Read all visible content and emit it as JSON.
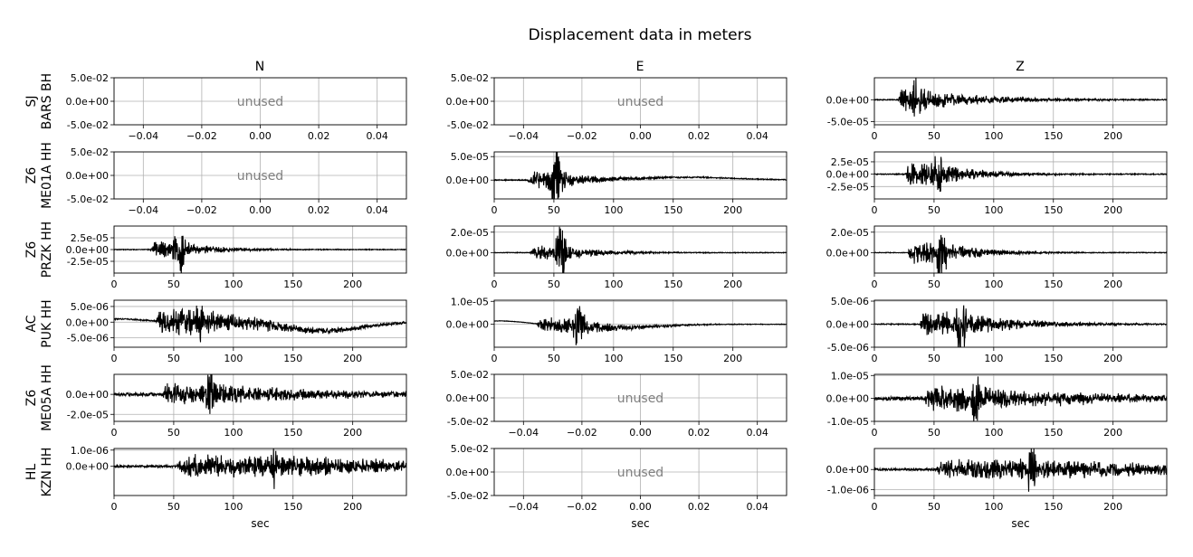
{
  "title": "Displacement data in meters",
  "columns": [
    "N",
    "E",
    "Z"
  ],
  "rows": [
    {
      "net": "SJ",
      "station": "BARS BH"
    },
    {
      "net": "Z6",
      "station": "ME01A HH"
    },
    {
      "net": "Z6",
      "station": "PRZK HH"
    },
    {
      "net": "AC",
      "station": "PUK HH"
    },
    {
      "net": "Z6",
      "station": "ME05A HH"
    },
    {
      "net": "HL",
      "station": "KZN HH"
    }
  ],
  "xlabel": "sec",
  "unused_label": "unused",
  "colors": {
    "trace": "#000000",
    "grid": "#b0b0b0",
    "unused_text": "#808080"
  },
  "chart_data": [
    {
      "type": "line",
      "row": 0,
      "col": 0,
      "unused": true,
      "xlim": [
        -0.05,
        0.05
      ],
      "ylim": [
        -0.05,
        0.05
      ],
      "xticks": [
        "-0.04",
        "-0.02",
        "0.00",
        "0.02",
        "0.04"
      ],
      "yticks": [
        "5.0e-02",
        "0.0e+00",
        "-5.0e-02"
      ]
    },
    {
      "type": "line",
      "row": 0,
      "col": 1,
      "unused": true,
      "xlim": [
        -0.05,
        0.05
      ],
      "ylim": [
        -0.05,
        0.05
      ],
      "xticks": [
        "-0.04",
        "-0.02",
        "0.00",
        "0.02",
        "0.04"
      ],
      "yticks": [
        "5.0e-02",
        "0.0e+00",
        "-5.0e-02"
      ]
    },
    {
      "type": "line",
      "row": 0,
      "col": 2,
      "unused": false,
      "xlim": [
        0,
        245
      ],
      "ylim": [
        -5.7e-05,
        5e-05
      ],
      "xticks": [
        "0",
        "50",
        "100",
        "150",
        "200"
      ],
      "yticks": [
        "0.0e+00",
        "-5.0e-05"
      ],
      "series": [
        {
          "onset": 20,
          "peak": 36,
          "amp": 5e-05,
          "amp_pre": 2e-05,
          "decay": 22,
          "noise": 1e-06,
          "drift": 0
        }
      ]
    },
    {
      "type": "line",
      "row": 1,
      "col": 0,
      "unused": true,
      "xlim": [
        -0.05,
        0.05
      ],
      "ylim": [
        -0.05,
        0.05
      ],
      "xticks": [
        "-0.04",
        "-0.02",
        "0.00",
        "0.02",
        "0.04"
      ],
      "yticks": [
        "5.0e-02",
        "0.0e+00",
        "-5.0e-02"
      ]
    },
    {
      "type": "line",
      "row": 1,
      "col": 1,
      "unused": false,
      "xlim": [
        0,
        245
      ],
      "ylim": [
        -4e-05,
        6e-05
      ],
      "xticks": [
        "0",
        "50",
        "100",
        "150",
        "200"
      ],
      "yticks": [
        "5.0e-05",
        "0.0e+00"
      ],
      "series": [
        {
          "onset": 28,
          "peak": 52,
          "amp": 5.5e-05,
          "amp_pre": 1.3e-05,
          "decay": 16,
          "noise": 1e-06,
          "drift": 6e-06,
          "drift_center": 160,
          "drift_width": 60
        }
      ]
    },
    {
      "type": "line",
      "row": 1,
      "col": 2,
      "unused": false,
      "xlim": [
        0,
        245
      ],
      "ylim": [
        -5e-05,
        4.5e-05
      ],
      "xticks": [
        "0",
        "50",
        "100",
        "150",
        "200"
      ],
      "yticks": [
        "2.5e-05",
        "0.0e+00",
        "-2.5e-05"
      ],
      "series": [
        {
          "onset": 26,
          "peak": 53,
          "amp": 4.3e-05,
          "amp_pre": 1.8e-05,
          "decay": 14,
          "noise": 1e-06,
          "drift": 0
        }
      ]
    },
    {
      "type": "line",
      "row": 2,
      "col": 0,
      "unused": false,
      "xlim": [
        0,
        245
      ],
      "ylim": [
        -5e-05,
        5e-05
      ],
      "xticks": [
        "0",
        "50",
        "100",
        "150",
        "200"
      ],
      "yticks": [
        "2.5e-05",
        "0.0e+00",
        "-2.5e-05"
      ],
      "series": [
        {
          "onset": 30,
          "peak": 55,
          "amp": 4.8e-05,
          "amp_pre": 1.2e-05,
          "decay": 14,
          "noise": 8e-07,
          "drift": 0
        }
      ]
    },
    {
      "type": "line",
      "row": 2,
      "col": 1,
      "unused": false,
      "xlim": [
        0,
        245
      ],
      "ylim": [
        -2e-05,
        2.6e-05
      ],
      "xticks": [
        "0",
        "50",
        "100",
        "150",
        "200"
      ],
      "yticks": [
        "2.0e-05",
        "0.0e+00"
      ],
      "series": [
        {
          "onset": 30,
          "peak": 56,
          "amp": 2.5e-05,
          "amp_pre": 5e-06,
          "decay": 15,
          "noise": 3e-07,
          "drift": 0
        }
      ]
    },
    {
      "type": "line",
      "row": 2,
      "col": 2,
      "unused": false,
      "xlim": [
        0,
        245
      ],
      "ylim": [
        -2e-05,
        2.6e-05
      ],
      "xticks": [
        "0",
        "50",
        "100",
        "150",
        "200"
      ],
      "yticks": [
        "2.0e-05",
        "0.0e+00"
      ],
      "series": [
        {
          "onset": 28,
          "peak": 56,
          "amp": 2.5e-05,
          "amp_pre": 8e-06,
          "decay": 15,
          "noise": 3e-07,
          "drift": 0
        }
      ]
    },
    {
      "type": "line",
      "row": 3,
      "col": 0,
      "unused": false,
      "xlim": [
        0,
        245
      ],
      "ylim": [
        -8e-06,
        7e-06
      ],
      "xticks": [
        "0",
        "50",
        "100",
        "150",
        "200"
      ],
      "yticks": [
        "5.0e-06",
        "0.0e+00",
        "-5.0e-06"
      ],
      "series": [
        {
          "onset": 35,
          "peak": 72,
          "amp": 6.5e-06,
          "amp_pre": 3e-06,
          "decay": 28,
          "noise": 2e-07,
          "drift": -2.8e-06,
          "drift_center": 175,
          "drift_width": 45,
          "drift_start": 1e-06
        }
      ]
    },
    {
      "type": "line",
      "row": 3,
      "col": 1,
      "unused": false,
      "xlim": [
        0,
        245
      ],
      "ylim": [
        -1e-05,
        1.05e-05
      ],
      "xticks": [
        "0",
        "50",
        "100",
        "150",
        "200"
      ],
      "yticks": [
        "1.0e-05",
        "0.0e+00"
      ],
      "series": [
        {
          "onset": 35,
          "peak": 71,
          "amp": 1e-05,
          "amp_pre": 2.5e-06,
          "decay": 16,
          "noise": 1e-07,
          "drift": -1.5e-06,
          "drift_center": 100,
          "drift_width": 50,
          "drift_start": 1.5e-06
        }
      ]
    },
    {
      "type": "line",
      "row": 3,
      "col": 2,
      "unused": false,
      "xlim": [
        0,
        245
      ],
      "ylim": [
        -5e-06,
        5.2e-06
      ],
      "xticks": [
        "0",
        "50",
        "100",
        "150",
        "200"
      ],
      "yticks": [
        "5.0e-06",
        "0.0e+00",
        "-5.0e-06"
      ],
      "series": [
        {
          "onset": 38,
          "peak": 73,
          "amp": 5e-06,
          "amp_pre": 2e-06,
          "decay": 20,
          "noise": 1e-07,
          "drift": 0
        }
      ]
    },
    {
      "type": "line",
      "row": 4,
      "col": 0,
      "unused": false,
      "xlim": [
        0,
        245
      ],
      "ylim": [
        -2.7e-05,
        2e-05
      ],
      "xticks": [
        "0",
        "50",
        "100",
        "150",
        "200"
      ],
      "yticks": [
        "0.0e+00",
        "-2.0e-05"
      ],
      "series": [
        {
          "onset": 40,
          "peak": 80,
          "amp": 2e-05,
          "amp_pre": 8e-06,
          "decay": 40,
          "noise": 1.5e-06,
          "drift": 0
        }
      ]
    },
    {
      "type": "line",
      "row": 4,
      "col": 1,
      "unused": true,
      "xlim": [
        -0.05,
        0.05
      ],
      "ylim": [
        -0.05,
        0.05
      ],
      "xticks": [
        "-0.04",
        "-0.02",
        "0.00",
        "0.02",
        "0.04"
      ],
      "yticks": [
        "5.0e-02",
        "0.0e+00",
        "-5.0e-02"
      ]
    },
    {
      "type": "line",
      "row": 4,
      "col": 2,
      "unused": false,
      "xlim": [
        0,
        245
      ],
      "ylim": [
        -1e-05,
        1.05e-05
      ],
      "xticks": [
        "0",
        "50",
        "100",
        "150",
        "200"
      ],
      "yticks": [
        "1.0e-05",
        "0.0e+00",
        "-1.0e-05"
      ],
      "series": [
        {
          "onset": 42,
          "peak": 85,
          "amp": 1e-05,
          "amp_pre": 4e-06,
          "decay": 40,
          "noise": 8e-07,
          "drift": 0
        }
      ]
    },
    {
      "type": "line",
      "row": 5,
      "col": 0,
      "unused": false,
      "xlim": [
        0,
        245
      ],
      "ylim": [
        -1.8e-06,
        1.1e-06
      ],
      "xticks": [
        "0",
        "50",
        "100",
        "150",
        "200"
      ],
      "yticks": [
        "1.0e-06",
        "0.0e+00"
      ],
      "series": [
        {
          "onset": 52,
          "peak": 133,
          "amp": 1.1e-06,
          "amp_pre": 5e-07,
          "decay": 70,
          "noise": 7e-08,
          "drift": 0
        }
      ]
    },
    {
      "type": "line",
      "row": 5,
      "col": 1,
      "unused": true,
      "xlim": [
        -0.05,
        0.05
      ],
      "ylim": [
        -0.05,
        0.05
      ],
      "xticks": [
        "-0.04",
        "-0.02",
        "0.00",
        "0.02",
        "0.04"
      ],
      "yticks": [
        "5.0e-02",
        "0.0e+00",
        "-5.0e-02"
      ]
    },
    {
      "type": "line",
      "row": 5,
      "col": 2,
      "unused": false,
      "xlim": [
        0,
        245
      ],
      "ylim": [
        -1.3e-06,
        1.05e-06
      ],
      "xticks": [
        "0",
        "50",
        "100",
        "150",
        "200"
      ],
      "yticks": [
        "0.0e+00",
        "-1.0e-06"
      ],
      "series": [
        {
          "onset": 52,
          "peak": 131,
          "amp": 1e-06,
          "amp_pre": 4e-07,
          "decay": 70,
          "noise": 5e-08,
          "drift": 0
        }
      ]
    }
  ]
}
